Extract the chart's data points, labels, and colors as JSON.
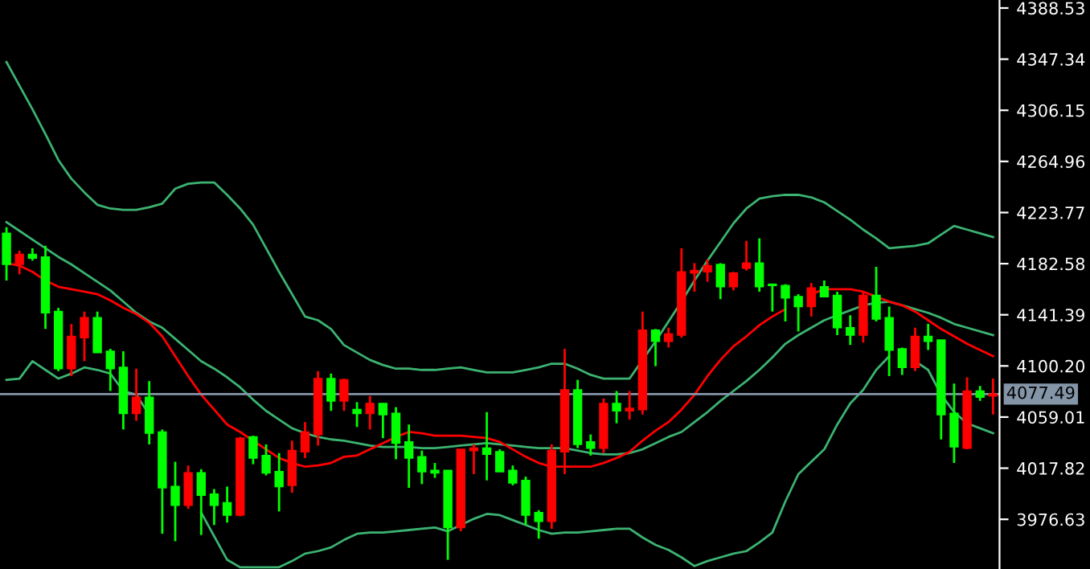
{
  "chart_data": [
    {
      "type": "line",
      "categories": [
        null,
        null,
        null,
        null,
        null,
        null,
        null,
        null,
        null,
        null,
        null,
        null,
        null,
        null,
        null,
        null,
        null,
        null,
        null,
        null,
        null,
        null,
        null,
        null,
        null,
        null,
        null,
        null,
        null,
        null,
        null,
        null,
        null,
        null,
        null,
        null,
        null,
        null,
        null,
        null,
        null,
        null,
        null,
        null,
        null,
        null,
        null,
        null,
        null,
        null,
        null,
        null,
        null,
        null,
        null,
        null,
        null,
        null,
        null,
        null,
        null,
        null,
        null,
        null,
        null,
        null,
        null,
        null,
        null,
        null,
        null,
        null,
        null,
        null,
        null,
        null,
        null
      ],
      "series": [
        {
          "color": "#3cb371",
          "values": [
            4345,
            4326,
            4307,
            4287,
            4266,
            4251,
            4240,
            4230,
            4227,
            4226,
            4226,
            4228,
            4231,
            4243,
            4247,
            4248,
            4248,
            4238,
            4227,
            4214,
            4195,
            4176,
            4158,
            4140,
            4137,
            4130,
            4117,
            4111,
            4105,
            4101,
            4098,
            4098,
            4097,
            4097,
            4098,
            4099,
            4097,
            4095,
            4095,
            4095,
            4097,
            4099,
            4102,
            4102,
            4098,
            4093,
            4090,
            4090,
            4090,
            4105,
            4120,
            4136,
            4152,
            4169,
            4185,
            4200,
            4215,
            4227,
            4235,
            4237,
            4238,
            4238,
            4236,
            4232,
            4225,
            4218,
            4210,
            4203,
            4195,
            4196,
            4197,
            4199,
            4206,
            4213,
            4210,
            4207,
            4204
          ]
        },
        {
          "color": "#3cb371",
          "values": [
            4216,
            4209,
            4202,
            4195,
            4188,
            4182,
            4175,
            4168,
            4161,
            4152,
            4143,
            4136,
            4131,
            4122,
            4113,
            4104,
            4098,
            4091,
            4083,
            4073,
            4064,
            4057,
            4050,
            4046,
            4043,
            4041,
            4040,
            4038,
            4036,
            4035,
            4035,
            4035,
            4034,
            4034,
            4035,
            4036,
            4037,
            4038,
            4037,
            4036,
            4035,
            4034,
            4034,
            4034,
            4032,
            4030,
            4029,
            4029,
            4030,
            4033,
            4038,
            4043,
            4047,
            4055,
            4063,
            4072,
            4080,
            4088,
            4097,
            4107,
            4118,
            4125,
            4131,
            4137,
            4141,
            4145,
            4149,
            4151,
            4152,
            4149,
            4146,
            4143,
            4139,
            4134,
            4131,
            4128,
            4125
          ]
        },
        {
          "color": "#3cb371",
          "values": [
            4089,
            4090,
            4104,
            4097,
            4090,
            4094,
            4099,
            4097,
            4094,
            4080,
            4077,
            4061,
            null,
            null,
            null,
            3982,
            3963,
            3944,
            3938,
            3938,
            3938,
            3938,
            3943,
            3949,
            3951,
            3954,
            3960,
            3965,
            3966,
            3966,
            3967,
            3968,
            3969,
            3970,
            3967,
            3972,
            3977,
            3981,
            3980,
            3976,
            3972,
            3968,
            3965,
            3966,
            3966,
            3967,
            3968,
            3969,
            3969,
            3962,
            3956,
            3952,
            3946,
            3939,
            3943,
            3946,
            3949,
            3951,
            3958,
            3966,
            3991,
            4013,
            4023,
            4033,
            4053,
            4070,
            4081,
            4097,
            4108,
            null,
            4104,
            4097,
            4077,
            4063,
            4054,
            4050,
            4046
          ]
        },
        {
          "color": "#ff0000",
          "values": [
            4183,
            4181,
            4176,
            4169,
            4164,
            4162,
            4160,
            4158,
            4153,
            4147,
            4142,
            4135,
            4124,
            4108,
            4092,
            4077,
            4065,
            4053,
            4047,
            4040,
            4033,
            4026,
            4022,
            4019,
            4020,
            4022,
            4027,
            4028,
            4033,
            4038,
            4043,
            4047,
            4046,
            4044,
            4044,
            4044,
            4043,
            4042,
            4039,
            4033,
            4027,
            4022,
            4019,
            4019,
            4019,
            4019,
            4022,
            4026,
            4031,
            4040,
            4048,
            4055,
            4065,
            4077,
            4092,
            4105,
            4116,
            4124,
            4133,
            4140,
            4146,
            null,
            4158,
            4162,
            4162,
            4162,
            4160,
            4156,
            4152,
            4149,
            4144,
            4137,
            4130,
            4124,
            4118,
            4113,
            4108
          ]
        }
      ],
      "ylim": [
        3936.6,
        4395
      ],
      "tick_labels": false
    },
    {
      "type": "candlestick",
      "categories": [
        null,
        null,
        null,
        null,
        null,
        null,
        null,
        null,
        null,
        null,
        null,
        null,
        null,
        null,
        null,
        null,
        null,
        null,
        null,
        null,
        null,
        null,
        null,
        null,
        null,
        null,
        null,
        null,
        null,
        null,
        null,
        null,
        null,
        null,
        null,
        null,
        null,
        null,
        null,
        null,
        null,
        null,
        null,
        null,
        null,
        null,
        null,
        null,
        null,
        null,
        null,
        null,
        null,
        null,
        null,
        null,
        null,
        null,
        null,
        null,
        null,
        null,
        null,
        null,
        null,
        null,
        null,
        null,
        null,
        null,
        null,
        null,
        null,
        null,
        null,
        null,
        null
      ],
      "ohlc": [
        [
          4207,
          4212,
          4169,
          4182
        ],
        [
          4182,
          4193,
          4174,
          4190
        ],
        [
          4190,
          4195,
          4185,
          4187
        ],
        [
          4188,
          4197,
          4130,
          4143
        ],
        [
          4144,
          4147,
          4096,
          4098
        ],
        [
          4098,
          4134,
          4092,
          4124
        ],
        [
          4123,
          4144,
          4104,
          4139
        ],
        [
          4139,
          4144,
          4111,
          4111
        ],
        [
          4112,
          4114,
          4080,
          4098
        ],
        [
          4099,
          4112,
          4049,
          4062
        ],
        [
          4062,
          4098,
          4056,
          4075
        ],
        [
          4075,
          4088,
          4037,
          4046
        ],
        [
          4047,
          4049,
          3965,
          4002
        ],
        [
          4003,
          4023,
          3959,
          3988
        ],
        [
          3988,
          4020,
          3985,
          4014
        ],
        [
          4014,
          4017,
          3964,
          3996
        ],
        [
          3997,
          4001,
          3972,
          3988
        ],
        [
          3990,
          4003,
          3974,
          3980
        ],
        [
          3980,
          4043,
          3979,
          4042
        ],
        [
          4043,
          4044,
          4021,
          4026
        ],
        [
          4028,
          4037,
          4012,
          4014
        ],
        [
          4015,
          4030,
          3983,
          4003
        ],
        [
          4004,
          4040,
          3998,
          4032
        ],
        [
          4031,
          4055,
          4026,
          4047
        ],
        [
          4045,
          4096,
          4036,
          4090
        ],
        [
          4090,
          4094,
          4064,
          4072
        ],
        [
          4072,
          4090,
          4064,
          4089
        ],
        [
          4065,
          4071,
          4051,
          4062
        ],
        [
          4062,
          4076,
          4049,
          4070
        ],
        [
          4070,
          4070,
          4042,
          4061
        ],
        [
          4062,
          4067,
          4025,
          4038
        ],
        [
          4039,
          4053,
          4002,
          4026
        ],
        [
          4027,
          4032,
          4005,
          4015
        ],
        [
          4016,
          4022,
          4010,
          4014
        ],
        [
          4016,
          4016,
          3944,
          3970
        ],
        [
          3970,
          4033,
          3967,
          4033
        ],
        [
          4032,
          4037,
          4013,
          4034
        ],
        [
          4034,
          4063,
          4008,
          4029
        ],
        [
          4031,
          4033,
          4015,
          4015
        ],
        [
          4016,
          4020,
          4004,
          4006
        ],
        [
          4008,
          4011,
          3972,
          3980
        ],
        [
          3982,
          3984,
          3961,
          3975
        ],
        [
          3975,
          4037,
          3969,
          4032
        ],
        [
          4031,
          4114,
          4013,
          4081
        ],
        [
          4081,
          4089,
          4034,
          4037
        ],
        [
          4039,
          4045,
          4028,
          4034
        ],
        [
          4034,
          4074,
          4030,
          4070
        ],
        [
          4070,
          4080,
          4054,
          4064
        ],
        [
          4064,
          4080,
          4057,
          4066
        ],
        [
          4065,
          4144,
          4061,
          4129
        ],
        [
          4129,
          4130,
          4100,
          4120
        ],
        [
          4120,
          4131,
          4115,
          4126
        ],
        [
          4125,
          4195,
          4123,
          4176
        ],
        [
          4175,
          4183,
          4160,
          4177
        ],
        [
          4176,
          4186,
          4168,
          4181
        ],
        [
          4182,
          4183,
          4154,
          4164
        ],
        [
          4164,
          4176,
          4161,
          4175
        ],
        [
          4179,
          4201,
          4177,
          4183
        ],
        [
          4183,
          4203,
          4160,
          4164
        ],
        [
          4166,
          4166,
          4144,
          4165
        ],
        [
          4165,
          4166,
          4136,
          4155
        ],
        [
          4156,
          4158,
          4128,
          4148
        ],
        [
          4148,
          4167,
          4140,
          4163
        ],
        [
          4164,
          4169,
          4156,
          4156
        ],
        [
          4157,
          4160,
          4125,
          4131
        ],
        [
          4131,
          4141,
          4117,
          4125
        ],
        [
          4125,
          4160,
          4119,
          4157
        ],
        [
          4157,
          4180,
          4136,
          4138
        ],
        [
          4139,
          4148,
          4092,
          4113
        ],
        [
          4114,
          4115,
          4093,
          4099
        ],
        [
          4099,
          4131,
          4096,
          4124
        ],
        [
          4124,
          4134,
          4113,
          4120
        ],
        [
          4121,
          4121,
          4041,
          4061
        ],
        [
          4062,
          4086,
          4022,
          4035
        ],
        [
          4034,
          4091,
          4033,
          4080
        ],
        [
          4080,
          4084,
          4072,
          4075
        ],
        [
          4076,
          4090,
          4061,
          4077.49
        ]
      ],
      "colors": [
        "#00ff00",
        "#ff0000",
        "#00ff00",
        "#00ff00",
        "#00ff00",
        "#ff0000",
        "#ff0000",
        "#00ff00",
        "#00ff00",
        "#00ff00",
        "#ff0000",
        "#00ff00",
        "#00ff00",
        "#00ff00",
        "#ff0000",
        "#00ff00",
        "#00ff00",
        "#00ff00",
        "#ff0000",
        "#00ff00",
        "#00ff00",
        "#00ff00",
        "#ff0000",
        "#ff0000",
        "#ff0000",
        "#00ff00",
        "#ff0000",
        "#00ff00",
        "#ff0000",
        "#00ff00",
        "#00ff00",
        "#00ff00",
        "#00ff00",
        "#00ff00",
        "#00ff00",
        "#ff0000",
        "#ff0000",
        "#00ff00",
        "#00ff00",
        "#00ff00",
        "#00ff00",
        "#00ff00",
        "#ff0000",
        "#ff0000",
        "#00ff00",
        "#00ff00",
        "#ff0000",
        "#00ff00",
        "#ff0000",
        "#ff0000",
        "#00ff00",
        "#ff0000",
        "#ff0000",
        "#ff0000",
        "#ff0000",
        "#00ff00",
        "#ff0000",
        "#ff0000",
        "#00ff00",
        "#00ff00",
        "#00ff00",
        "#00ff00",
        "#ff0000",
        "#00ff00",
        "#00ff00",
        "#00ff00",
        "#ff0000",
        "#00ff00",
        "#00ff00",
        "#00ff00",
        "#ff0000",
        "#00ff00",
        "#00ff00",
        "#00ff00",
        "#ff0000",
        "#00ff00",
        "#ff0000"
      ],
      "ylim": [
        3936.6,
        4395
      ],
      "yticks": [
        4388.53,
        4347.34,
        4306.15,
        4264.96,
        4223.77,
        4182.58,
        4141.39,
        {
          "value": 4100.2,
          "label": "4100.20"
        },
        4059.01,
        4017.82,
        3976.63
      ],
      "tick_labels": "y",
      "ref_lines": [
        {
          "axis": "y",
          "value": 4077.49,
          "label": "4077.49",
          "color": "#8495a8"
        }
      ]
    }
  ]
}
